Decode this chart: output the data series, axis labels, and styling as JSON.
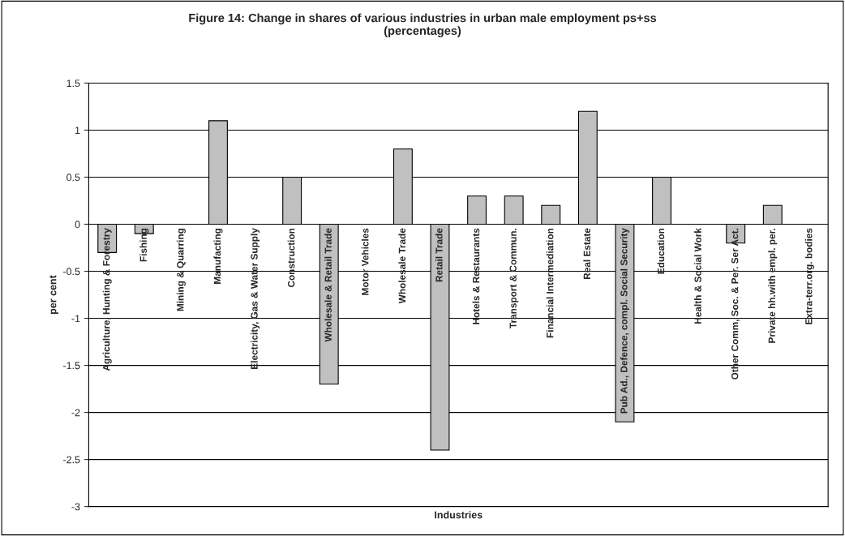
{
  "chart_data": {
    "type": "bar",
    "title": "Figure 14: Change in shares of various industries in urban male employment ps+ss\n(percentages)",
    "xlabel": "Industries",
    "ylabel": "per cent",
    "categories": [
      "Agriculture, Hunting & Forestry",
      "Fishing",
      "Mining & Quarring",
      "Manufacting",
      "Electricity, Gas & Water Supply",
      "Construction",
      "Wholesale & Retail Trade",
      "Motor Vehicles",
      "Wholesale Trade",
      "Retail Trade",
      "Hotels & Restaurants",
      "Transport & Commun.",
      "Financial Intermediation",
      "Real Estate",
      "Pub Ad., Defence, compl. Social Security",
      "Education",
      "Health & Social Work",
      "Other Comm, Soc. & Per. Ser Act.",
      "Private hh.with empl. per.",
      "Extra-terr.org. bodies"
    ],
    "values": [
      -0.3,
      -0.1,
      0,
      1.1,
      0,
      0.5,
      -1.7,
      0,
      0.8,
      -2.4,
      0.3,
      0.3,
      0.2,
      1.2,
      -2.1,
      0.5,
      0,
      -0.2,
      0.2,
      0
    ],
    "color": "#c0c0c0",
    "ylim": [
      -3,
      1.5
    ],
    "yticks": [
      -3,
      -2.5,
      -2,
      -1.5,
      -1,
      -0.5,
      0,
      0.5,
      1,
      1.5
    ],
    "grid": "y"
  }
}
